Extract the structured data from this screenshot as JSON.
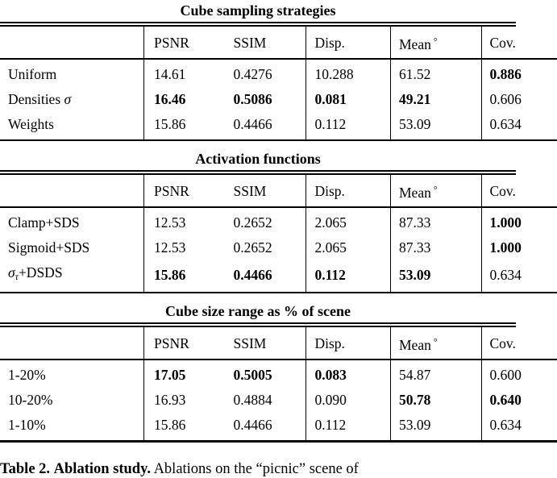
{
  "page": {
    "background": "#ffffff",
    "text_color": "#000000"
  },
  "tables": [
    {
      "title": "Cube sampling strategies",
      "columns": [
        {
          "text": "PSNR"
        },
        {
          "text": "SSIM"
        },
        {
          "text": "Disp."
        },
        {
          "text": "Mean",
          "sup": "°"
        },
        {
          "text": "Cov."
        }
      ],
      "rows": [
        {
          "label": [
            {
              "t": "Uniform",
              "s": ""
            }
          ],
          "cells": [
            {
              "v": "14.61",
              "b": false
            },
            {
              "v": "0.4276",
              "b": false
            },
            {
              "v": "10.288",
              "b": false
            },
            {
              "v": "61.52",
              "b": false
            },
            {
              "v": "0.886",
              "b": true
            }
          ]
        },
        {
          "label": [
            {
              "t": "Densities ",
              "s": ""
            },
            {
              "t": "σ",
              "s": "m"
            }
          ],
          "cells": [
            {
              "v": "16.46",
              "b": true
            },
            {
              "v": "0.5086",
              "b": true
            },
            {
              "v": "0.081",
              "b": true
            },
            {
              "v": "49.21",
              "b": true
            },
            {
              "v": "0.606",
              "b": false
            }
          ]
        },
        {
          "label": [
            {
              "t": "Weights",
              "s": ""
            }
          ],
          "cells": [
            {
              "v": "15.86",
              "b": false
            },
            {
              "v": "0.4466",
              "b": false
            },
            {
              "v": "0.112",
              "b": false
            },
            {
              "v": "53.09",
              "b": false
            },
            {
              "v": "0.634",
              "b": false
            }
          ]
        }
      ]
    },
    {
      "title": "Activation functions",
      "columns": [
        {
          "text": "PSNR"
        },
        {
          "text": "SSIM"
        },
        {
          "text": "Disp."
        },
        {
          "text": "Mean",
          "sup": "°"
        },
        {
          "text": "Cov."
        }
      ],
      "rows": [
        {
          "label": [
            {
              "t": "Clamp+SDS",
              "s": ""
            }
          ],
          "cells": [
            {
              "v": "12.53",
              "b": false
            },
            {
              "v": "0.2652",
              "b": false
            },
            {
              "v": "2.065",
              "b": false
            },
            {
              "v": "87.33",
              "b": false
            },
            {
              "v": "1.000",
              "b": true
            }
          ]
        },
        {
          "label": [
            {
              "t": "Sigmoid+SDS",
              "s": ""
            }
          ],
          "cells": [
            {
              "v": "12.53",
              "b": false
            },
            {
              "v": "0.2652",
              "b": false
            },
            {
              "v": "2.065",
              "b": false
            },
            {
              "v": "87.33",
              "b": false
            },
            {
              "v": "1.000",
              "b": true
            }
          ]
        },
        {
          "label": [
            {
              "t": "σ",
              "s": "m"
            },
            {
              "t": "τ",
              "s": "ms"
            },
            {
              "t": "+DSDS",
              "s": ""
            }
          ],
          "cells": [
            {
              "v": "15.86",
              "b": true
            },
            {
              "v": "0.4466",
              "b": true
            },
            {
              "v": "0.112",
              "b": true
            },
            {
              "v": "53.09",
              "b": true
            },
            {
              "v": "0.634",
              "b": false
            }
          ]
        }
      ]
    },
    {
      "title": "Cube size range as % of scene",
      "columns": [
        {
          "text": "PSNR"
        },
        {
          "text": "SSIM"
        },
        {
          "text": "Disp."
        },
        {
          "text": "Mean",
          "sup": "°"
        },
        {
          "text": "Cov."
        }
      ],
      "rows": [
        {
          "label": [
            {
              "t": "1-20%",
              "s": ""
            }
          ],
          "cells": [
            {
              "v": "17.05",
              "b": true
            },
            {
              "v": "0.5005",
              "b": true
            },
            {
              "v": "0.083",
              "b": true
            },
            {
              "v": "54.87",
              "b": false
            },
            {
              "v": "0.600",
              "b": false
            }
          ]
        },
        {
          "label": [
            {
              "t": "10-20%",
              "s": ""
            }
          ],
          "cells": [
            {
              "v": "16.93",
              "b": false
            },
            {
              "v": "0.4884",
              "b": false
            },
            {
              "v": "0.090",
              "b": false
            },
            {
              "v": "50.78",
              "b": true
            },
            {
              "v": "0.640",
              "b": true
            }
          ]
        },
        {
          "label": [
            {
              "t": "1-10%",
              "s": ""
            }
          ],
          "cells": [
            {
              "v": "15.86",
              "b": false
            },
            {
              "v": "0.4466",
              "b": false
            },
            {
              "v": "0.112",
              "b": false
            },
            {
              "v": "53.09",
              "b": false
            },
            {
              "v": "0.634",
              "b": false
            }
          ]
        }
      ]
    }
  ],
  "caption": {
    "label": "Table 2.",
    "heading": "Ablation study.",
    "text": "Ablations on the “picnic” scene of"
  }
}
